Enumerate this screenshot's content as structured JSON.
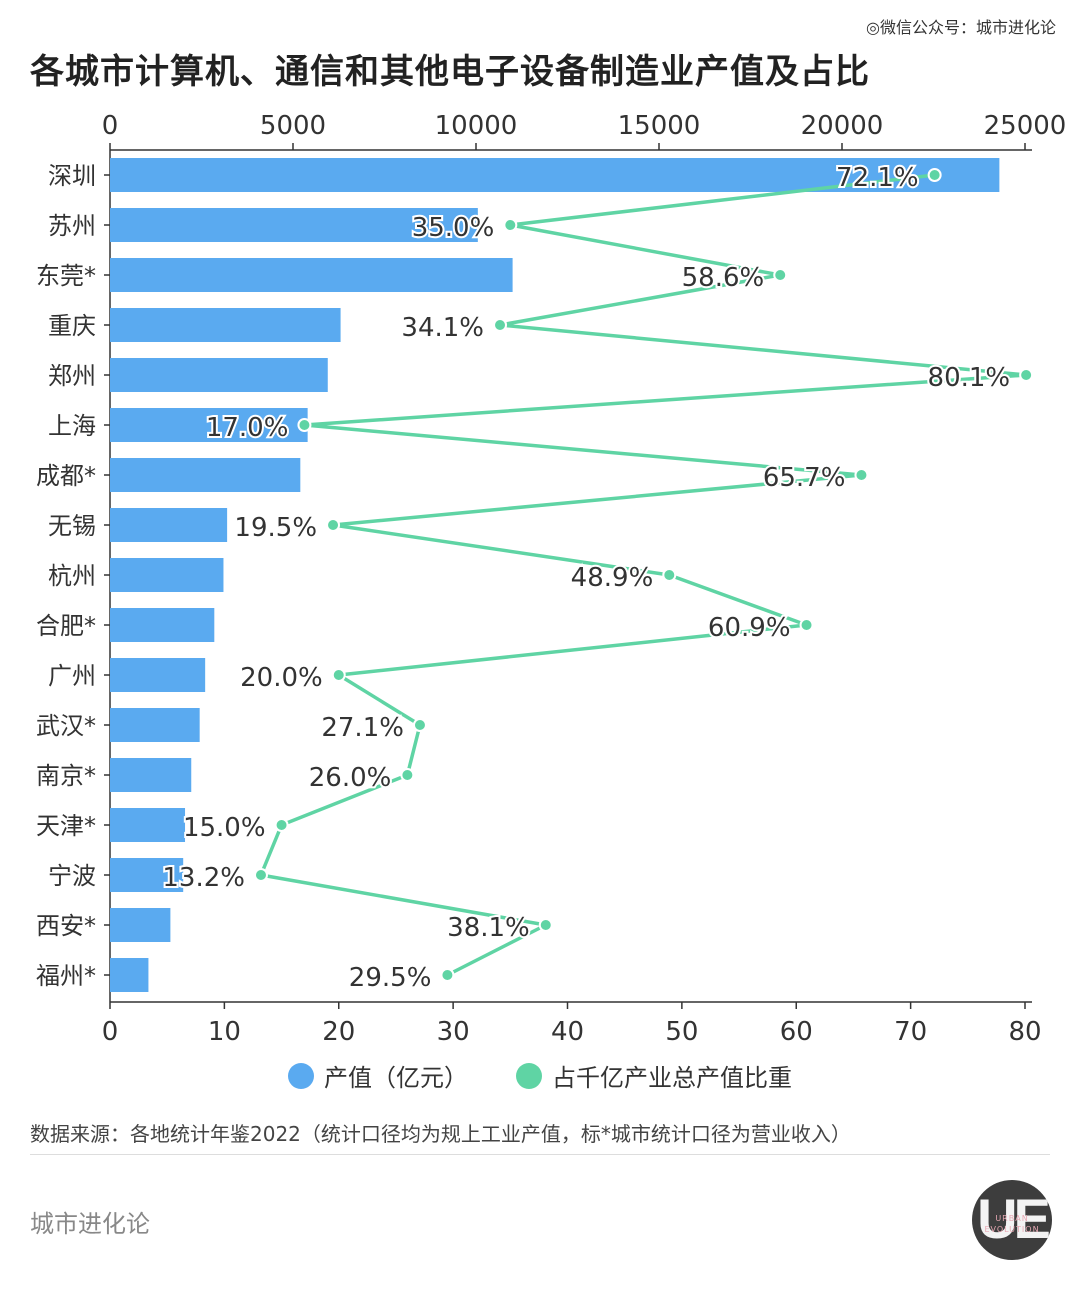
{
  "watermark_top": "◎微信公众号：城市进化论",
  "chart_data": {
    "type": "bar",
    "title": "各城市计算机、通信和其他电子设备制造业产值及占比",
    "categories": [
      "深圳",
      "苏州",
      "东莞*",
      "重庆",
      "郑州",
      "上海",
      "成都*",
      "无锡",
      "杭州",
      "合肥*",
      "广州",
      "武汉*",
      "南京*",
      "天津*",
      "宁波",
      "西安*",
      "福州*"
    ],
    "series": [
      {
        "name": "产值（亿元）",
        "type": "bar",
        "axis": "top",
        "color": "#5aaaf0",
        "values": [
          24300,
          10050,
          11000,
          6300,
          5950,
          5400,
          5200,
          3200,
          3100,
          2850,
          2600,
          2450,
          2220,
          2050,
          2000,
          1650,
          1050
        ]
      },
      {
        "name": "占千亿产业总产值比重",
        "type": "line",
        "axis": "bottom",
        "color": "#5fd4a4",
        "values": [
          72.1,
          35.0,
          58.6,
          34.1,
          80.1,
          17.0,
          65.7,
          19.5,
          48.9,
          60.9,
          20.0,
          27.1,
          26.0,
          15.0,
          13.2,
          38.1,
          29.5
        ],
        "labels": [
          "72.1%",
          "35.0%",
          "58.6%",
          "34.1%",
          "80.1%",
          "17.0%",
          "65.7%",
          "19.5%",
          "48.9%",
          "60.9%",
          "20.0%",
          "27.1%",
          "26.0%",
          "15.0%",
          "13.2%",
          "38.1%",
          "29.5%"
        ]
      }
    ],
    "top_axis": {
      "range": [
        0,
        25000
      ],
      "ticks": [
        "0",
        "5000",
        "10000",
        "15000",
        "20000",
        "25000"
      ]
    },
    "bottom_axis": {
      "range": [
        0,
        80
      ],
      "ticks": [
        "0",
        "10",
        "20",
        "30",
        "40",
        "50",
        "60",
        "70",
        "80"
      ]
    },
    "grid": false,
    "legend_position": "bottom-center"
  },
  "legend": [
    {
      "label": "产值（亿元）",
      "color": "#5aaaf0"
    },
    {
      "label": "占千亿产业总产值比重",
      "color": "#5fd4a4"
    }
  ],
  "source_note": "数据来源：各地统计年鉴2022（统计口径均为规上工业产值，标*城市统计口径为营业收入）",
  "brand": {
    "name": "城市进化论",
    "logo_text": "UE",
    "logo_sub": "URBAN EVOLUTION"
  }
}
